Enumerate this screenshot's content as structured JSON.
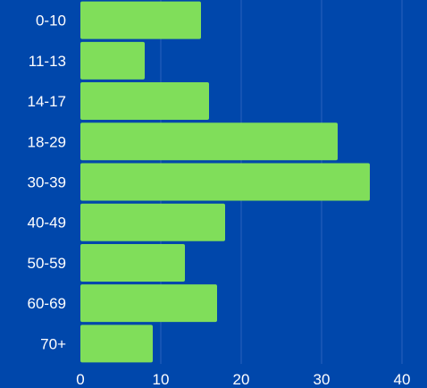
{
  "chart_data": {
    "type": "bar",
    "orientation": "horizontal",
    "categories": [
      "0-10",
      "11-13",
      "14-17",
      "18-29",
      "30-39",
      "40-49",
      "50-59",
      "60-69",
      "70+"
    ],
    "values": [
      15,
      8,
      16,
      32,
      36,
      18,
      13,
      17,
      9
    ],
    "xlim": [
      0,
      40
    ],
    "xticks": [
      "0",
      "10",
      "20",
      "30",
      "40"
    ],
    "title": "",
    "xlabel": "",
    "ylabel": "",
    "grid": "vertical",
    "legend": "none"
  },
  "colors": {
    "background": "#0047ab",
    "bar": "#80de5a",
    "grid": "#2a62bd",
    "text": "#ffffff"
  }
}
